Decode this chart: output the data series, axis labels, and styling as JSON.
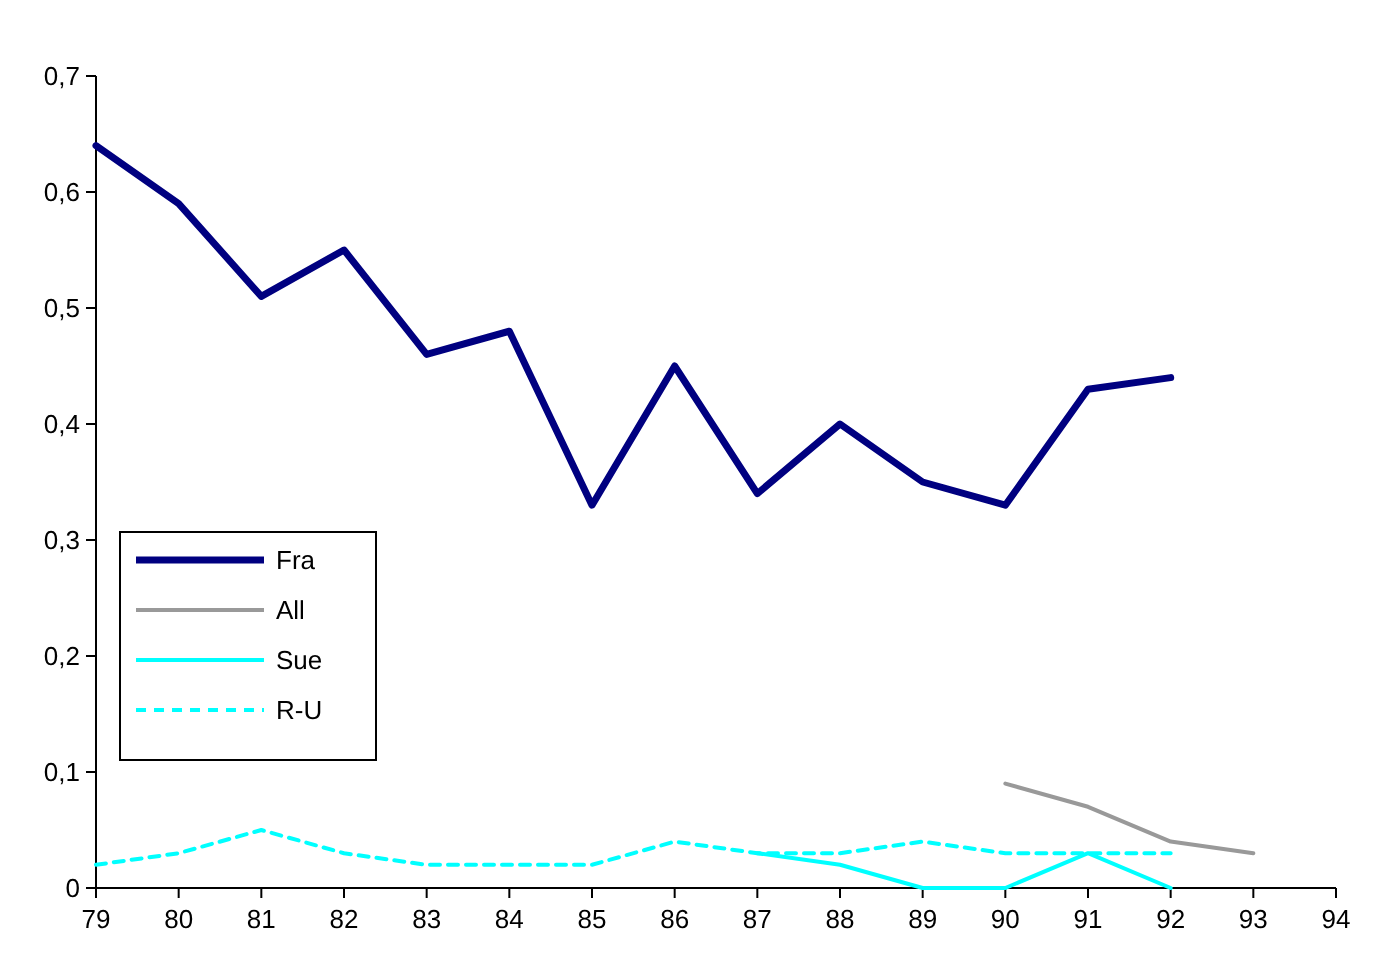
{
  "chart_data": {
    "type": "line",
    "x": [
      79,
      80,
      81,
      82,
      83,
      84,
      85,
      86,
      87,
      88,
      89,
      90,
      91,
      92
    ],
    "xlim": [
      79,
      94
    ],
    "xticks": [
      79,
      80,
      81,
      82,
      83,
      84,
      85,
      86,
      87,
      88,
      89,
      90,
      91,
      92,
      93,
      94
    ],
    "ylim": [
      0,
      0.7
    ],
    "yticks": [
      0,
      {
        "value": 0.1,
        "label": "0,1"
      },
      {
        "value": 0.2,
        "label": "0,2"
      },
      {
        "value": 0.3,
        "label": "0,3"
      },
      {
        "value": 0.4,
        "label": "0,4"
      },
      {
        "value": 0.5,
        "label": "0,5"
      },
      {
        "value": 0.6,
        "label": "0,6"
      },
      {
        "value": 0.7,
        "label": "0,7"
      }
    ],
    "legend": "left",
    "grid": false,
    "marker": "none",
    "series": [
      {
        "name": "Fra",
        "color": "#000080",
        "values": [
          0.64,
          0.59,
          0.51,
          0.55,
          0.46,
          0.48,
          0.33,
          0.45,
          0.34,
          0.4,
          0.35,
          0.33,
          0.43,
          0.44
        ]
      },
      {
        "name": "All",
        "color": "#999999",
        "x": [
          90,
          91,
          92,
          93
        ],
        "values": [
          0.09,
          0.07,
          0.04,
          0.03
        ]
      },
      {
        "name": "Sue",
        "color": "#00ffff",
        "x": [
          87,
          88,
          89,
          90,
          91,
          92
        ],
        "values": [
          0.03,
          0.02,
          0,
          0,
          0.03,
          0
        ]
      },
      {
        "name": "R-U",
        "color": "#00ffff",
        "line_style": "dashed",
        "values": [
          0.02,
          0.03,
          0.05,
          0.03,
          0.02,
          0.02,
          0.02,
          0.04,
          0.03,
          0.03,
          0.04,
          0.03,
          0.03,
          0.03
        ]
      }
    ]
  }
}
